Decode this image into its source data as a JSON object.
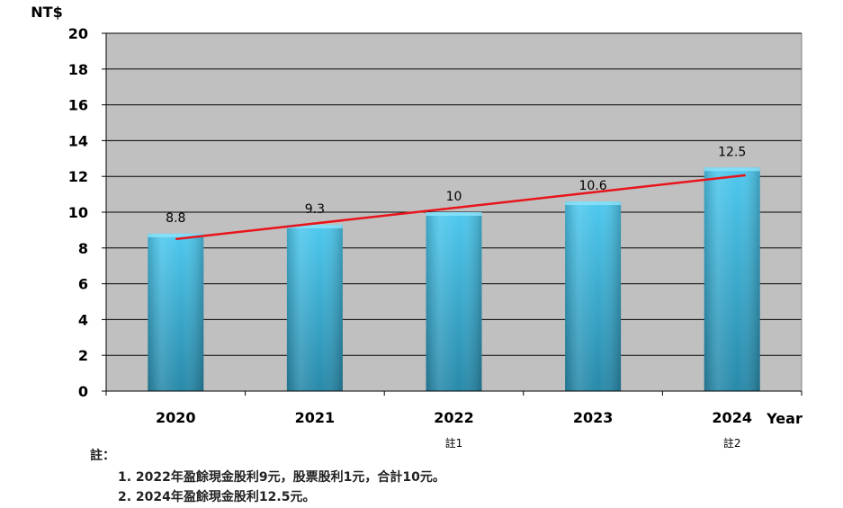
{
  "chart_data": {
    "type": "bar",
    "unit_label": "NT$",
    "xlabel": "Year",
    "categories": [
      "2020",
      "2021",
      "2022",
      "2023",
      "2024"
    ],
    "category_notes": [
      "",
      "",
      "註1",
      "",
      "註2"
    ],
    "values": [
      8.8,
      9.3,
      10,
      10.6,
      12.5
    ],
    "value_labels": [
      "8.8",
      "9.3",
      "10",
      "10.6",
      "12.5"
    ],
    "ylim": [
      0,
      20
    ],
    "yticks": [
      0,
      2,
      4,
      6,
      8,
      10,
      12,
      14,
      16,
      18,
      20
    ],
    "grid": true,
    "trendline": {
      "type": "linear",
      "color": "#e8141b"
    },
    "colors": {
      "plot_bg": "#c0c0c0",
      "bar_top": "#4ec9ef",
      "bar_bottom": "#2889a9",
      "trend": "#e8141b"
    }
  },
  "notes": {
    "title": "註：",
    "items": [
      "1. 2022年盈餘現金股利9元，股票股利1元，合計10元。",
      "2. 2024年盈餘現金股利12.5元。"
    ]
  }
}
